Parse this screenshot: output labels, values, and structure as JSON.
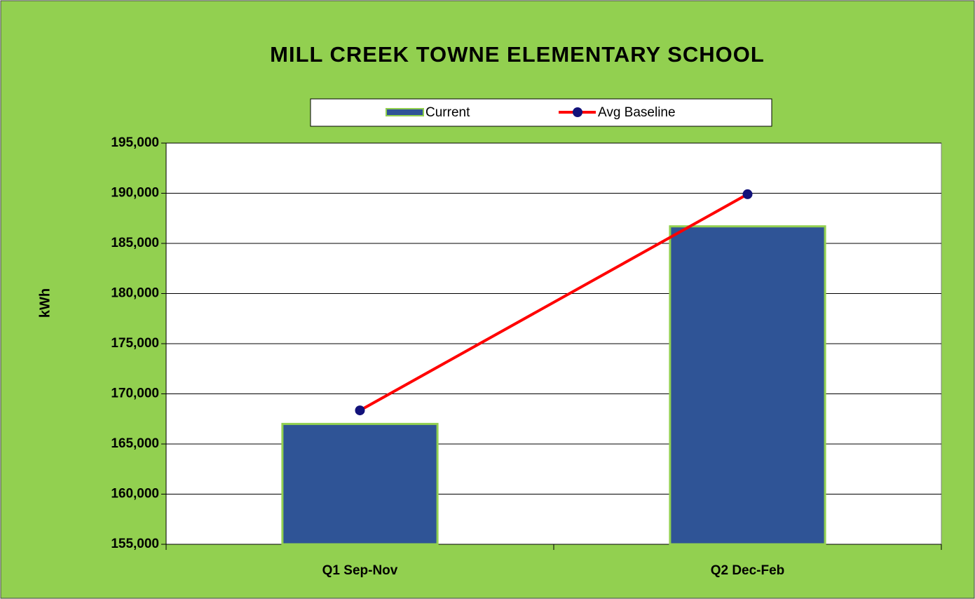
{
  "chart_data": {
    "type": "bar",
    "title": "MILL CREEK TOWNE ELEMENTARY SCHOOL",
    "y_label": "kWh",
    "categories": [
      "Q1 Sep-Nov",
      "Q2 Dec-Feb"
    ],
    "series": [
      {
        "name": "Current",
        "type": "bar",
        "color": "#2f5496",
        "values": [
          167000,
          186700
        ]
      },
      {
        "name": "Avg Baseline",
        "type": "line",
        "color": "#ff0000",
        "marker_color": "#12127a",
        "values": [
          168350,
          189900
        ]
      }
    ],
    "ylim": [
      155000,
      195000
    ],
    "yticks": [
      {
        "value": 155000,
        "label": "155,000"
      },
      {
        "value": 160000,
        "label": "160,000"
      },
      {
        "value": 165000,
        "label": "165,000"
      },
      {
        "value": 170000,
        "label": "170,000"
      },
      {
        "value": 175000,
        "label": "175,000"
      },
      {
        "value": 180000,
        "label": "180,000"
      },
      {
        "value": 185000,
        "label": "185,000"
      },
      {
        "value": 190000,
        "label": "190,000"
      },
      {
        "value": 195000,
        "label": "195,000"
      }
    ],
    "grid": true,
    "legend": "top"
  }
}
